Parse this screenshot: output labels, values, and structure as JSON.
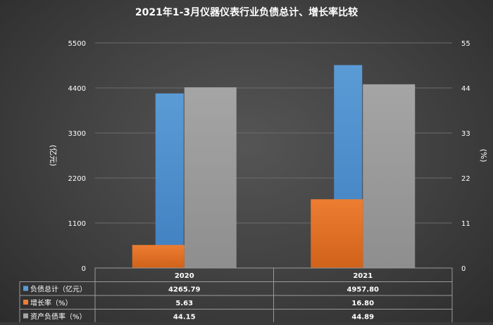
{
  "chart_data": {
    "type": "bar",
    "title": "2021年1-3月仪器仪表行业负债总计、增长率比较",
    "categories": [
      "2020",
      "2021"
    ],
    "series": [
      {
        "name": "负债总计（亿元）",
        "axis": "left",
        "color": "#5b9bd5",
        "values": [
          4265.79,
          4957.8
        ],
        "labels": [
          "4265.79",
          "4957.80"
        ]
      },
      {
        "name": "增长率（%）",
        "axis": "right",
        "color": "#ed7d31",
        "values": [
          5.63,
          16.8
        ],
        "labels": [
          "5.63",
          "16.80"
        ]
      },
      {
        "name": "资产负债率（%）",
        "axis": "right",
        "color": "#a5a5a5",
        "values": [
          44.15,
          44.89
        ],
        "labels": [
          "44.15",
          "44.89"
        ]
      }
    ],
    "ylabel_left": "(亿元)",
    "ylabel_right": "(%)",
    "ylim_left": [
      0,
      5500
    ],
    "ylim_right": [
      0,
      55
    ],
    "yticks_left": [
      "0",
      "1100",
      "2200",
      "3300",
      "4400",
      "5500"
    ],
    "yticks_right": [
      "0",
      "11",
      "22",
      "33",
      "44",
      "55"
    ],
    "grid": true,
    "legend": "data-table"
  }
}
